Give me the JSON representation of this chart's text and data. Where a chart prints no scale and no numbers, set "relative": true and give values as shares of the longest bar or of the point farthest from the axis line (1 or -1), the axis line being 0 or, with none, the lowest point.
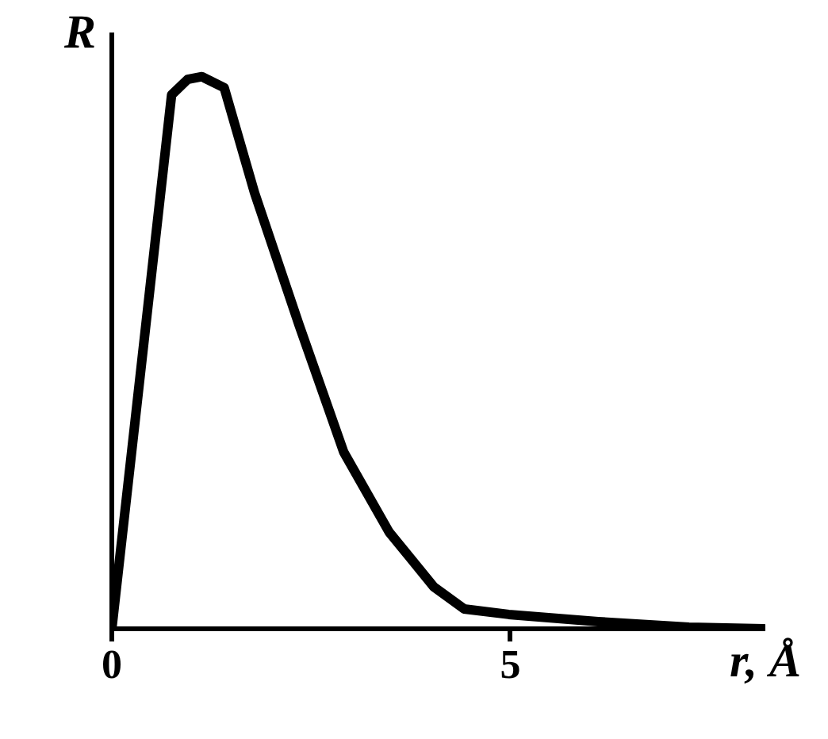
{
  "chart_data": {
    "type": "line",
    "relative": true,
    "xlabel": "r, Å",
    "ylabel": "R",
    "x": [
      0,
      0.38,
      0.75,
      0.95,
      1.13,
      1.41,
      1.79,
      2.35,
      2.91,
      3.48,
      4.04,
      4.42,
      4.98,
      6.1,
      7.24,
      8.18
    ],
    "series": [
      {
        "color": "#000000",
        "values": [
          0,
          0.49,
          0.967,
          0.995,
          1.0,
          0.98,
          0.79,
          0.55,
          0.32,
          0.175,
          0.076,
          0.036,
          0.026,
          0.013,
          0.003,
          0
        ]
      }
    ],
    "xlim": [
      0,
      8.2
    ],
    "xticks": [
      0,
      5
    ],
    "grid": false,
    "legend": false,
    "marker": "none",
    "line_style": "solid"
  }
}
